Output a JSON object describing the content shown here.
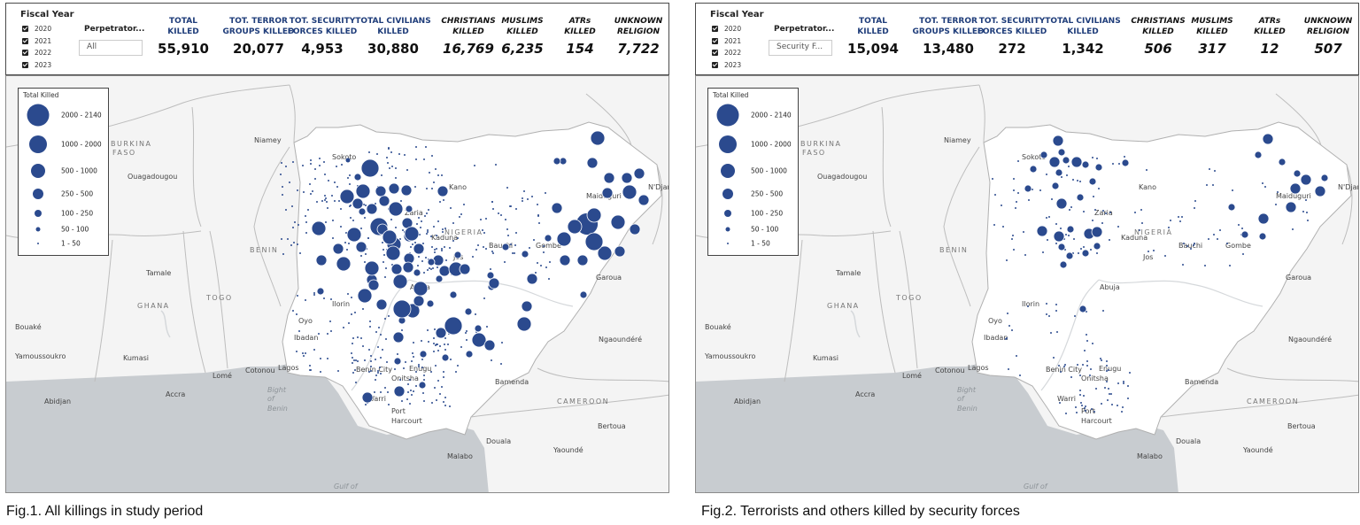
{
  "panels": [
    {
      "fiscal_year_title": "Fiscal Year",
      "fiscal_years": [
        "2020",
        "2021",
        "2022",
        "2023"
      ],
      "perpetrator_label": "Perpetrator...",
      "perpetrator_value": "All",
      "kpis": [
        {
          "label1": "TOTAL",
          "label2": "KILLED",
          "value": "55,910",
          "italic": false
        },
        {
          "label1": "TOT. TERROR",
          "label2": "GROUPS KILLED",
          "value": "20,077",
          "italic": false
        },
        {
          "label1": "TOT. SECURITY",
          "label2": "FORCES KILLED",
          "value": "4,953",
          "italic": false
        },
        {
          "label1": "TOTAL CIVILIANS",
          "label2": "KILLED",
          "value": "30,880",
          "italic": false
        },
        {
          "label1": "CHRISTIANS",
          "label2": "KILLED",
          "value": "16,769",
          "italic": true
        },
        {
          "label1": "MUSLIMS",
          "label2": "KILLED",
          "value": "6,235",
          "italic": true
        },
        {
          "label1": "ATRs",
          "label2": "KILLED",
          "value": "154",
          "italic": true
        },
        {
          "label1": "UNKNOWN",
          "label2": "RELIGION",
          "value": "7,722",
          "italic": true
        }
      ],
      "caption": "Fig.1. All killings in study period"
    },
    {
      "fiscal_year_title": "Fiscal Year",
      "fiscal_years": [
        "2020",
        "2021",
        "2022",
        "2023"
      ],
      "perpetrator_label": "Perpetrator...",
      "perpetrator_value": "Security F...",
      "kpis": [
        {
          "label1": "TOTAL",
          "label2": "KILLED",
          "value": "15,094",
          "italic": false
        },
        {
          "label1": "TOT. TERROR",
          "label2": "GROUPS KILLED",
          "value": "13,480",
          "italic": false
        },
        {
          "label1": "TOT. SECURITY",
          "label2": "FORCES KILLED",
          "value": "272",
          "italic": false
        },
        {
          "label1": "TOTAL CIVILIANS",
          "label2": "KILLED",
          "value": "1,342",
          "italic": false
        },
        {
          "label1": "CHRISTIANS",
          "label2": "KILLED",
          "value": "506",
          "italic": true
        },
        {
          "label1": "MUSLIMS",
          "label2": "KILLED",
          "value": "317",
          "italic": true
        },
        {
          "label1": "ATRs",
          "label2": "KILLED",
          "value": "12",
          "italic": true
        },
        {
          "label1": "UNKNOWN",
          "label2": "RELIGION",
          "value": "507",
          "italic": true
        }
      ],
      "caption": "Fig.2. Terrorists and others killed by security forces"
    }
  ],
  "legend": {
    "title": "Total Killed",
    "classes": [
      {
        "label": "2000 - 2140",
        "level": 6
      },
      {
        "label": "1000 - 2000",
        "level": 5
      },
      {
        "label": "500 - 1000",
        "level": 4
      },
      {
        "label": "250 - 500",
        "level": 3
      },
      {
        "label": "100 - 250",
        "level": 2
      },
      {
        "label": "50 - 100",
        "level": 1
      },
      {
        "label": "1 - 50",
        "level": 0
      }
    ]
  },
  "map": {
    "bubble_color": "#2b4a8e",
    "land_color": "#f4f4f4",
    "nigeria_color": "#ffffff",
    "water_color": "#c8ccd0",
    "place_labels": [
      {
        "name": "Niamey",
        "type": "city"
      },
      {
        "name": "BURKINA",
        "type": "country"
      },
      {
        "name": "FASO",
        "type": "country"
      },
      {
        "name": "Ouagadougou",
        "type": "city"
      },
      {
        "name": "BENIN",
        "type": "country"
      },
      {
        "name": "Tamale",
        "type": "city"
      },
      {
        "name": "TOGO",
        "type": "country"
      },
      {
        "name": "GHANA",
        "type": "country"
      },
      {
        "name": "Bouaké",
        "type": "city"
      },
      {
        "name": "Yamoussoukro",
        "type": "city"
      },
      {
        "name": "Kumasi",
        "type": "city"
      },
      {
        "name": "Lomé",
        "type": "city"
      },
      {
        "name": "Cotonou",
        "type": "city"
      },
      {
        "name": "Accra",
        "type": "city"
      },
      {
        "name": "Abidjan",
        "type": "city"
      },
      {
        "name": "Bight",
        "type": "water"
      },
      {
        "name": "of",
        "type": "water"
      },
      {
        "name": "Benin",
        "type": "water"
      },
      {
        "name": "Gulf of",
        "type": "water"
      },
      {
        "name": "Sokoto",
        "type": "city"
      },
      {
        "name": "Kano",
        "type": "city"
      },
      {
        "name": "Zaria",
        "type": "city"
      },
      {
        "name": "Kaduna",
        "type": "city"
      },
      {
        "name": "NIGERIA",
        "type": "country"
      },
      {
        "name": "Bauchi",
        "type": "city"
      },
      {
        "name": "Gombe",
        "type": "city"
      },
      {
        "name": "Jos",
        "type": "city"
      },
      {
        "name": "Abuja",
        "type": "city"
      },
      {
        "name": "Maiduguri",
        "type": "city"
      },
      {
        "name": "N'Djamena",
        "type": "city"
      },
      {
        "name": "Garoua",
        "type": "city"
      },
      {
        "name": "Ilorin",
        "type": "city"
      },
      {
        "name": "Oyo",
        "type": "city"
      },
      {
        "name": "Ibadan",
        "type": "city"
      },
      {
        "name": "Lagos",
        "type": "city"
      },
      {
        "name": "Benin City",
        "type": "city"
      },
      {
        "name": "Onitsha",
        "type": "city"
      },
      {
        "name": "Enugu",
        "type": "city"
      },
      {
        "name": "Warri",
        "type": "city"
      },
      {
        "name": "Port",
        "type": "city"
      },
      {
        "name": "Harcourt",
        "type": "city"
      },
      {
        "name": "Ngaoundéré",
        "type": "city"
      },
      {
        "name": "Bamenda",
        "type": "city"
      },
      {
        "name": "CAMEROON",
        "type": "country"
      },
      {
        "name": "Bertoua",
        "type": "city"
      },
      {
        "name": "Douala",
        "type": "city"
      },
      {
        "name": "Malabo",
        "type": "city"
      },
      {
        "name": "Yaoundé",
        "type": "city"
      }
    ]
  }
}
